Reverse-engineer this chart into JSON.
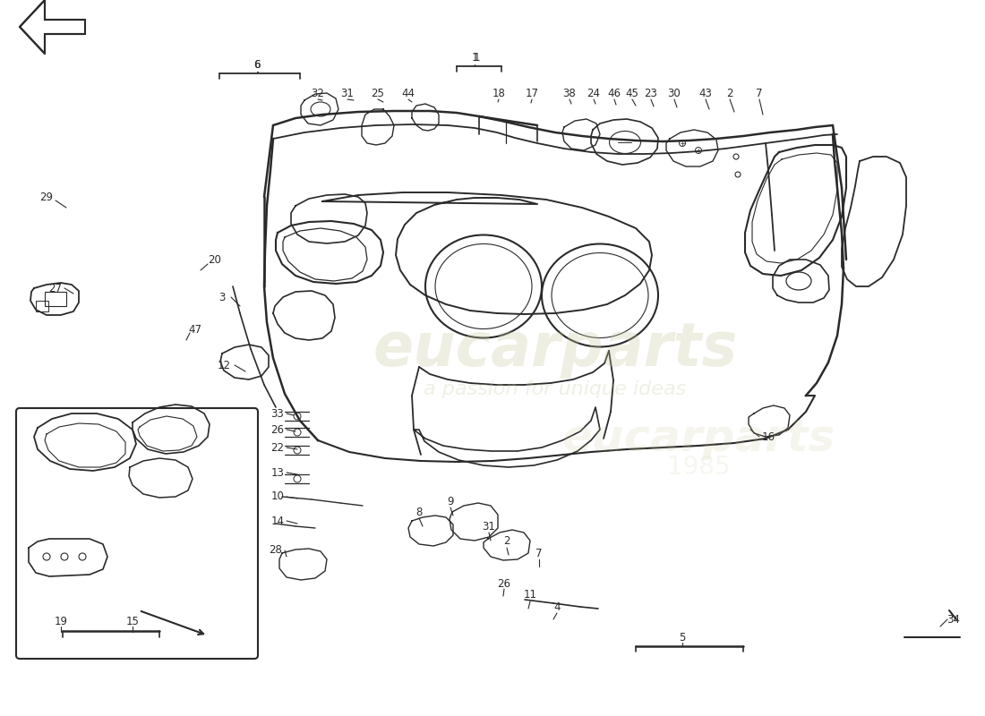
{
  "bg_color": "#ffffff",
  "line_color": "#2a2a2a",
  "wm_color": "#c8c8a0",
  "fig_w": 11.0,
  "fig_h": 8.0,
  "top_labels": [
    [
      "6",
      287,
      718,
      295,
      688
    ],
    [
      "32",
      355,
      682,
      370,
      658
    ],
    [
      "31",
      390,
      682,
      405,
      655
    ],
    [
      "25",
      422,
      682,
      435,
      648
    ],
    [
      "44",
      455,
      682,
      462,
      642
    ],
    [
      "1",
      530,
      722,
      535,
      690
    ],
    [
      "18",
      557,
      682,
      558,
      652
    ],
    [
      "17",
      594,
      682,
      595,
      648
    ],
    [
      "38",
      634,
      682,
      638,
      645
    ],
    [
      "24",
      662,
      682,
      668,
      642
    ],
    [
      "46",
      686,
      682,
      694,
      638
    ],
    [
      "45",
      705,
      682,
      714,
      635
    ],
    [
      "23",
      726,
      682,
      736,
      632
    ],
    [
      "30",
      753,
      682,
      764,
      628
    ],
    [
      "43",
      788,
      682,
      800,
      625
    ],
    [
      "2",
      814,
      682,
      826,
      620
    ],
    [
      "7",
      847,
      682,
      860,
      615
    ]
  ],
  "side_labels": [
    [
      "27",
      61,
      468,
      75,
      445
    ],
    [
      "3",
      248,
      465,
      265,
      445
    ],
    [
      "12",
      252,
      388,
      278,
      368
    ],
    [
      "16",
      860,
      308,
      845,
      325
    ],
    [
      "34",
      1065,
      102,
      1058,
      118
    ]
  ],
  "left_stack_labels": [
    [
      "33",
      311,
      315,
      320,
      325
    ],
    [
      "26",
      311,
      298,
      322,
      308
    ],
    [
      "22",
      311,
      278,
      322,
      288
    ],
    [
      "13",
      311,
      255,
      322,
      264
    ],
    [
      "10",
      311,
      228,
      322,
      238
    ],
    [
      "14",
      311,
      202,
      322,
      212
    ],
    [
      "28",
      311,
      162,
      322,
      172
    ]
  ],
  "inset_labels": [
    [
      "29",
      52,
      573,
      68,
      558
    ],
    [
      "20",
      217,
      498,
      210,
      510
    ],
    [
      "47",
      210,
      420,
      205,
      435
    ],
    [
      "19",
      68,
      80,
      90,
      85
    ],
    [
      "15",
      145,
      80,
      160,
      85
    ]
  ],
  "bottom_labels": [
    [
      "8",
      468,
      198,
      475,
      210
    ],
    [
      "9",
      502,
      208,
      508,
      220
    ],
    [
      "31",
      540,
      175,
      545,
      188
    ],
    [
      "2",
      565,
      160,
      570,
      172
    ],
    [
      "7",
      600,
      152,
      605,
      165
    ],
    [
      "26",
      565,
      120,
      562,
      132
    ],
    [
      "11",
      592,
      112,
      590,
      125
    ],
    [
      "4",
      619,
      108,
      617,
      120
    ],
    [
      "5",
      762,
      68,
      762,
      80
    ]
  ]
}
